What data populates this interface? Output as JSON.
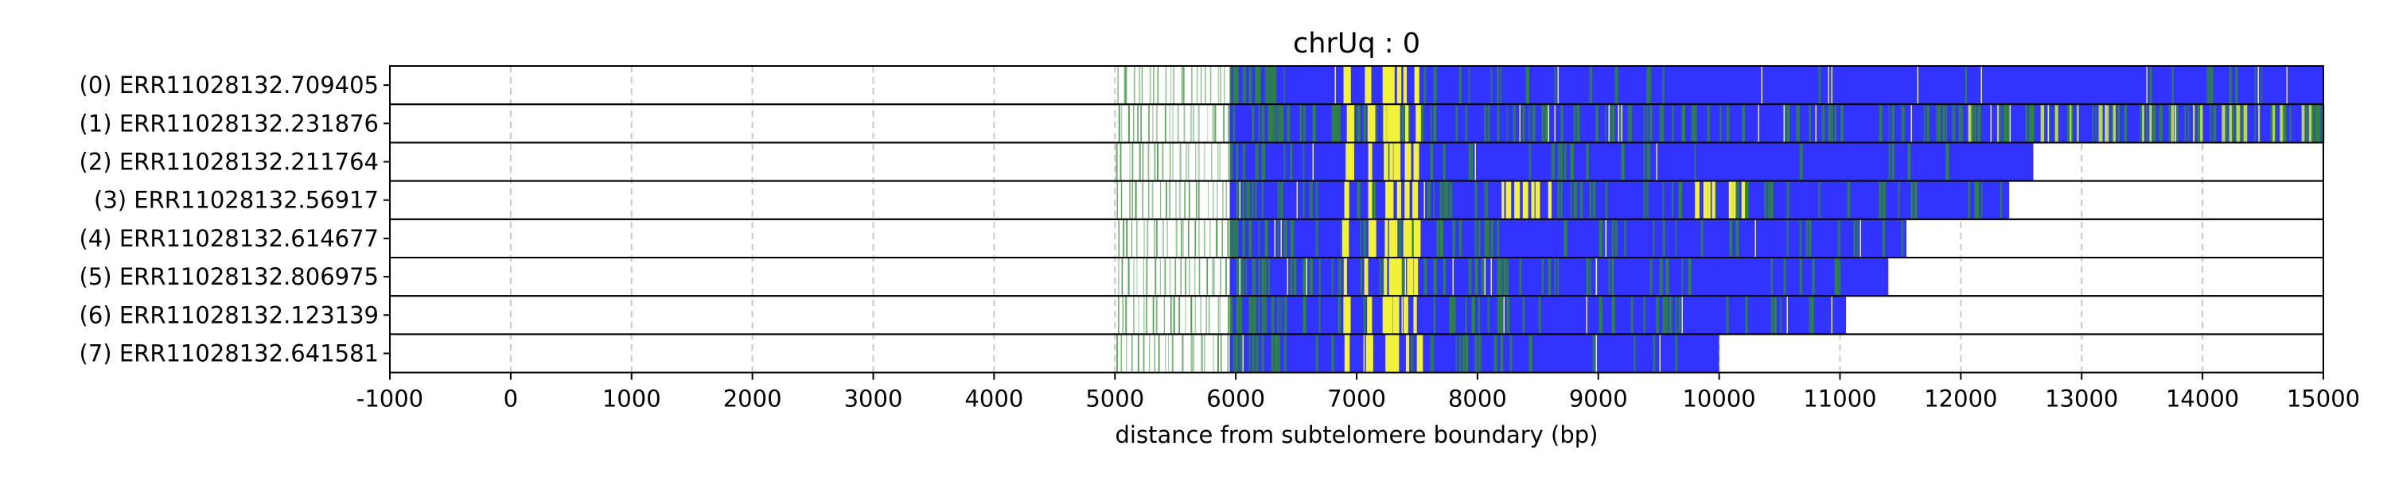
{
  "chart_data": {
    "type": "heatmap",
    "title": "chrUq : 0",
    "xlabel": "distance from subtelomere boundary (bp)",
    "xlim": [
      -1000,
      15000
    ],
    "xticks": [
      -1000,
      0,
      1000,
      2000,
      3000,
      4000,
      5000,
      6000,
      7000,
      8000,
      9000,
      10000,
      11000,
      12000,
      13000,
      14000,
      15000
    ],
    "grid": "vertical dashed",
    "colors": {
      "telomeric": "#3333ff",
      "variant_green": "#2e8b2e",
      "variant_yellow": "#f2f23a",
      "sparse_line": "#2e8b2e",
      "grid": "#c8c8c8",
      "border": "#000000"
    },
    "reads": [
      {
        "label": "(0) ERR11028132.709405",
        "sparse_start": 5000,
        "dense_start": 5950,
        "end": 15000,
        "green_density": 0.06
      },
      {
        "label": "(1) ERR11028132.231876",
        "sparse_start": 5000,
        "dense_start": 5950,
        "end": 15000,
        "green_density": 0.38
      },
      {
        "label": "(2) ERR11028132.211764",
        "sparse_start": 5000,
        "dense_start": 5950,
        "end": 12600,
        "green_density": 0.1
      },
      {
        "label": "(3) ERR11028132.56917",
        "sparse_start": 5000,
        "dense_start": 5950,
        "end": 12400,
        "green_density": 0.22
      },
      {
        "label": "(4) ERR11028132.614677",
        "sparse_start": 5000,
        "dense_start": 5950,
        "end": 11550,
        "green_density": 0.2
      },
      {
        "label": "(5) ERR11028132.806975",
        "sparse_start": 5000,
        "dense_start": 5950,
        "end": 11400,
        "green_density": 0.2
      },
      {
        "label": "(6) ERR11028132.123139",
        "sparse_start": 5000,
        "dense_start": 5950,
        "end": 11050,
        "green_density": 0.16
      },
      {
        "label": "(7) ERR11028132.641581",
        "sparse_start": 5000,
        "dense_start": 5950,
        "end": 10000,
        "green_density": 0.08
      }
    ]
  }
}
